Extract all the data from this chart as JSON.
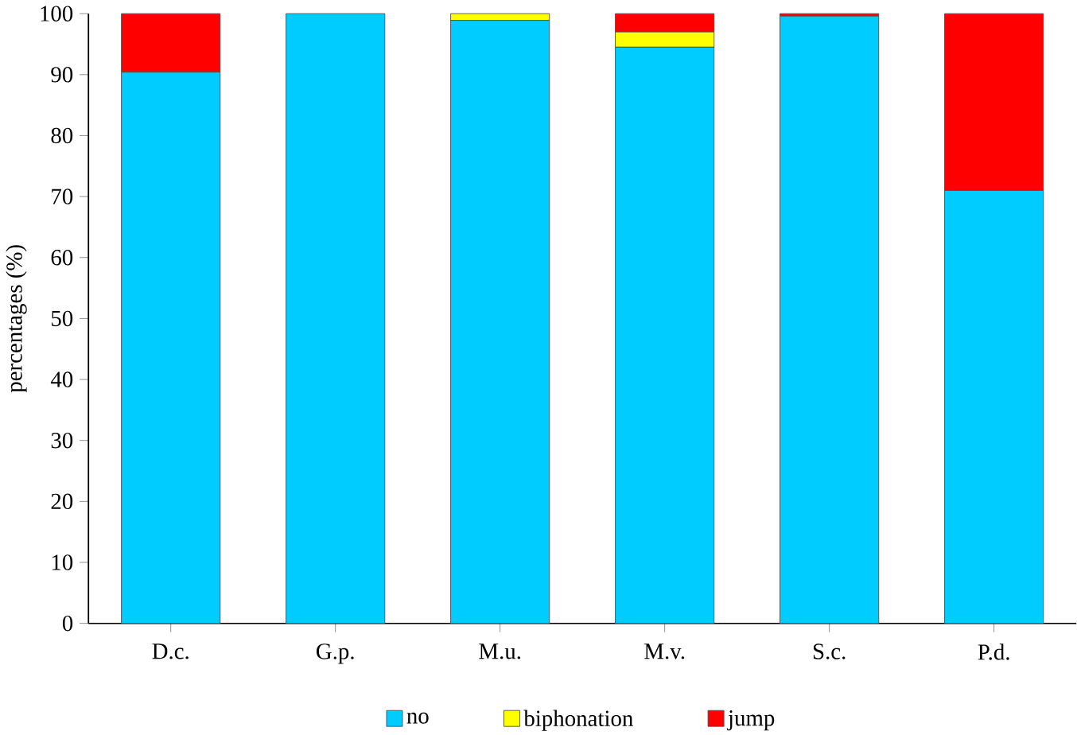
{
  "chart_data": {
    "type": "bar",
    "stacked": true,
    "ylabel": "percentages (%)",
    "categories": [
      "D.c.",
      "G.p.",
      "M.u.",
      "M.v.",
      "S.c.",
      "P.d."
    ],
    "series": [
      {
        "name": "no",
        "color": "#00ccff",
        "values": [
          90.4,
          100,
          98.9,
          94.5,
          99.6,
          71
        ]
      },
      {
        "name": "biphonation",
        "color": "#ffff00",
        "values": [
          0,
          0,
          1.1,
          2.5,
          0,
          0
        ]
      },
      {
        "name": "jump",
        "color": "#ff0000",
        "values": [
          9.6,
          0,
          0,
          3,
          0.4,
          29
        ]
      }
    ],
    "ylim": [
      0,
      100
    ],
    "yticks": [
      0,
      10,
      20,
      30,
      40,
      50,
      60,
      70,
      80,
      90,
      100
    ],
    "legend": "bottom"
  }
}
